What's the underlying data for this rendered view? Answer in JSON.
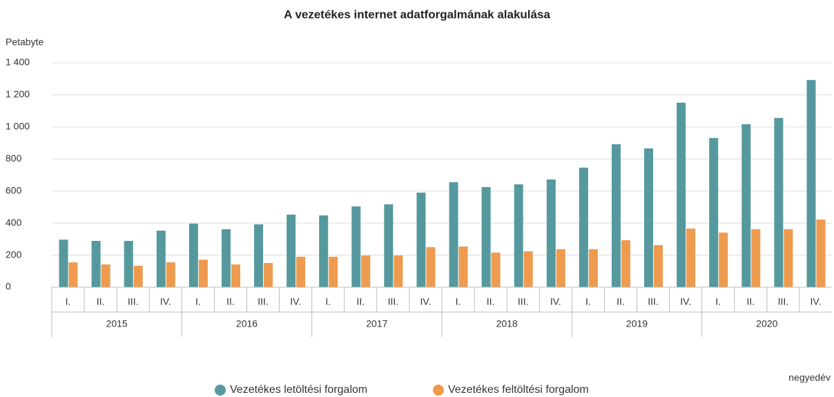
{
  "chart_data": {
    "type": "bar",
    "title": "A vezetékes internet adatforgalmának alakulása",
    "y_label": "Petabyte",
    "x_label": "negyedév",
    "categories": [
      "I.",
      "II.",
      "III.",
      "IV.",
      "I.",
      "II.",
      "III.",
      "IV.",
      "I.",
      "II.",
      "III.",
      "IV.",
      "I.",
      "II.",
      "III.",
      "IV.",
      "I.",
      "II.",
      "III.",
      "IV.",
      "I.",
      "II.",
      "III.",
      "IV."
    ],
    "groups": [
      "2015",
      "2016",
      "2017",
      "2018",
      "2019",
      "2020"
    ],
    "series": [
      {
        "name": "Vezetékes letöltési forgalom",
        "color": "#55999e",
        "values": [
          297,
          289,
          289,
          353,
          397,
          362,
          392,
          453,
          448,
          504,
          517,
          590,
          655,
          625,
          642,
          672,
          746,
          892,
          866,
          1151,
          931,
          1017,
          1056,
          1293
        ]
      },
      {
        "name": "Vezetékes feltöltési forgalom",
        "color": "#ee9b4f",
        "values": [
          155,
          142,
          134,
          155,
          172,
          142,
          151,
          190,
          190,
          198,
          198,
          250,
          254,
          216,
          224,
          237,
          237,
          293,
          263,
          366,
          341,
          362,
          362,
          422
        ]
      }
    ],
    "ylim": [
      0,
      1400
    ],
    "yticks": [
      0,
      200,
      400,
      600,
      800,
      {
        "value": 1000,
        "label": "1 000"
      },
      {
        "value": 1200,
        "label": "1 200"
      },
      {
        "value": 1400,
        "label": "1 400"
      }
    ],
    "grid": true
  }
}
